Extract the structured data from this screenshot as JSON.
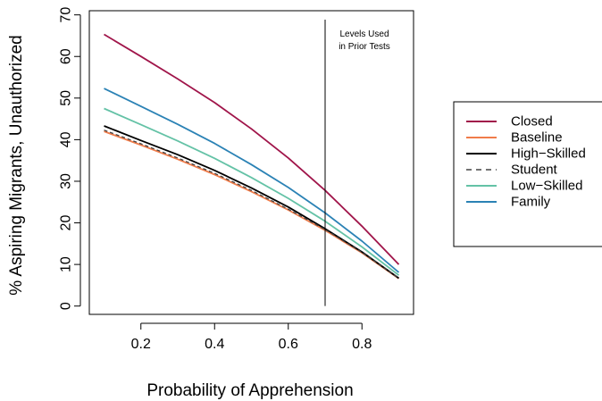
{
  "chart_data": {
    "type": "line",
    "title": "",
    "xlabel": "Probability of Apprehension",
    "ylabel": "% Aspiring Migrants, Unauthorized",
    "xlim": [
      0.06,
      0.94
    ],
    "ylim": [
      -2,
      71
    ],
    "x_ticks": [
      0.2,
      0.4,
      0.6,
      0.8
    ],
    "x_tick_labels": [
      "0.2",
      "0.4",
      "0.6",
      "0.8"
    ],
    "y_ticks": [
      0,
      10,
      20,
      30,
      40,
      50,
      60,
      70
    ],
    "y_tick_labels": [
      "0",
      "10",
      "20",
      "30",
      "40",
      "50",
      "60",
      "70"
    ],
    "x": [
      0.1,
      0.2,
      0.3,
      0.4,
      0.5,
      0.6,
      0.7,
      0.8,
      0.9
    ],
    "series": [
      {
        "name": "Closed",
        "color": "#a0154a",
        "dash": "solid",
        "values": [
          65.3,
          60.0,
          54.6,
          48.9,
          42.6,
          35.6,
          27.8,
          19.2,
          10.0
        ]
      },
      {
        "name": "Baseline",
        "color": "#f07c4a",
        "dash": "solid",
        "values": [
          42.0,
          38.7,
          35.3,
          31.6,
          27.5,
          23.1,
          18.2,
          12.8,
          6.6
        ]
      },
      {
        "name": "High−Skilled",
        "color": "#000000",
        "dash": "solid",
        "values": [
          43.3,
          39.8,
          36.4,
          32.6,
          28.4,
          23.8,
          18.6,
          13.0,
          6.7
        ]
      },
      {
        "name": "Student",
        "color": "#444444",
        "dash": "dashed",
        "values": [
          42.3,
          39.0,
          35.6,
          31.9,
          27.8,
          23.3,
          18.4,
          12.9,
          6.7
        ]
      },
      {
        "name": "Low−Skilled",
        "color": "#64c2a6",
        "dash": "solid",
        "values": [
          47.5,
          43.6,
          39.7,
          35.5,
          30.9,
          25.9,
          20.4,
          14.2,
          7.4
        ]
      },
      {
        "name": "Family",
        "color": "#2b82b5",
        "dash": "solid",
        "values": [
          52.3,
          48.0,
          43.7,
          39.1,
          34.0,
          28.5,
          22.4,
          15.6,
          8.1
        ]
      }
    ],
    "reference_line": {
      "x": 0.7,
      "label_lines": [
        "Levels Used",
        "in Prior Tests"
      ]
    },
    "legend_position": "right",
    "grid": false
  }
}
